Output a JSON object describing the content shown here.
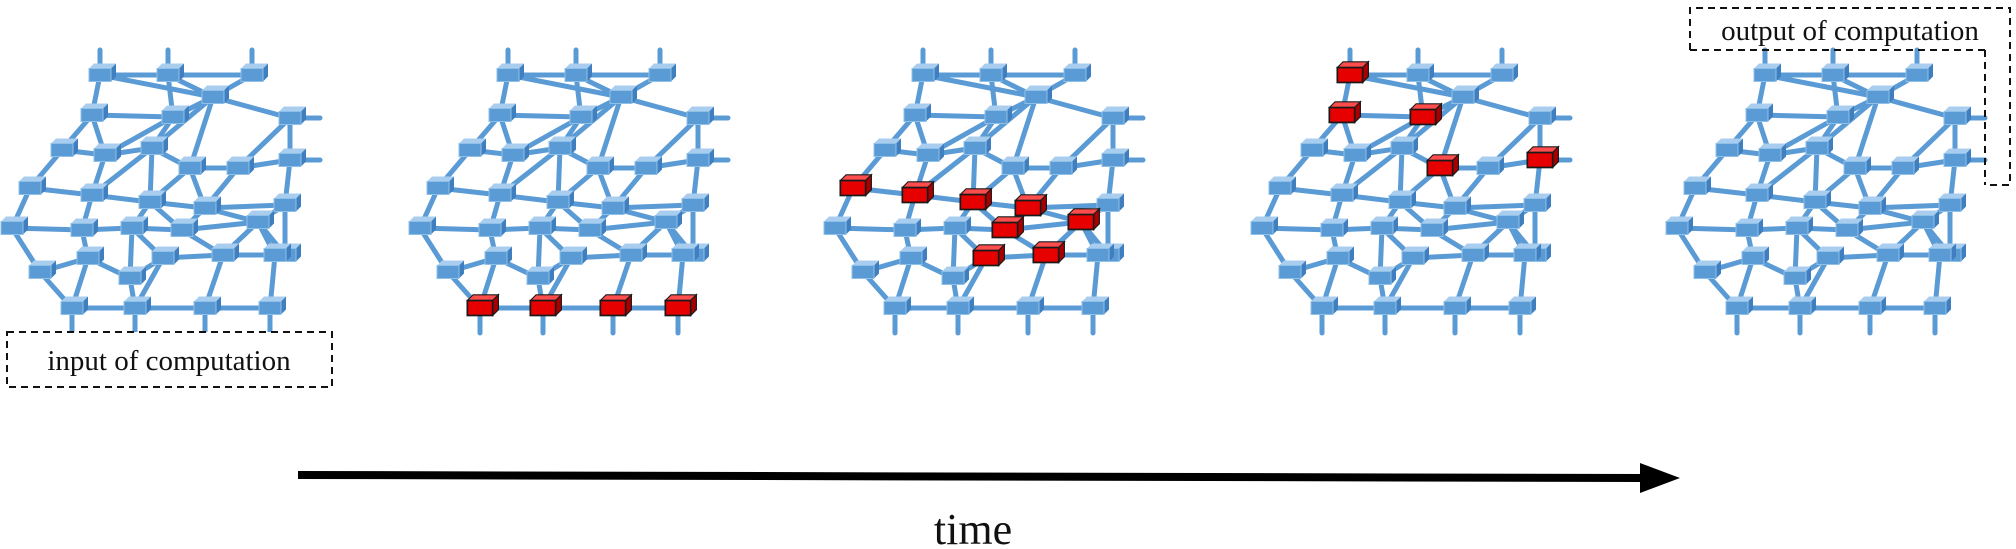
{
  "input_label": "input of computation",
  "output_label": "output of computation",
  "time_label": "time",
  "colors": {
    "network": "#5b9bd5",
    "active_node": "#e60000",
    "arrow": "#000000"
  },
  "panels": [
    {
      "name": "stage-1",
      "active_nodes": []
    },
    {
      "name": "stage-2",
      "active_nodes": [
        26,
        27,
        28,
        29
      ]
    },
    {
      "name": "stage-3",
      "active_nodes": [
        12,
        13,
        14,
        15,
        16,
        17,
        18,
        19
      ]
    },
    {
      "name": "stage-4",
      "active_nodes": [
        0,
        1,
        2,
        3,
        4
      ]
    },
    {
      "name": "stage-5",
      "active_nodes": []
    }
  ]
}
